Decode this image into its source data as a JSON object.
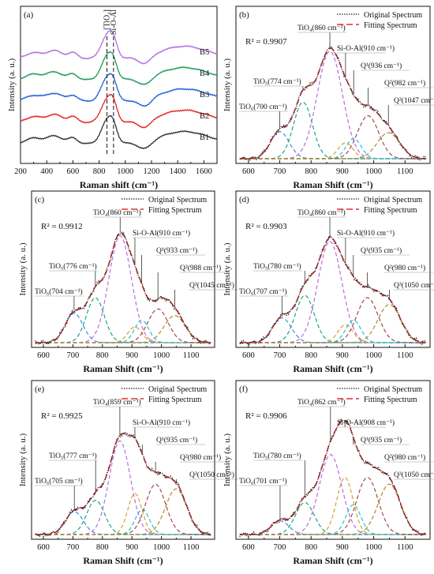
{
  "chart_data": [
    {
      "panel": "(a)",
      "type": "line",
      "xlabel": "Raman shift (cm⁻¹)",
      "ylabel": "Intensity (a. u.)",
      "xlim": [
        200,
        1700
      ],
      "xticks": [
        200,
        400,
        600,
        800,
        1000,
        1200,
        1400,
        1600
      ],
      "markers": [
        {
          "x": 860,
          "label": "[TiO₄]"
        },
        {
          "x": 910,
          "label": "Si-O-Al"
        }
      ],
      "series": [
        {
          "name": "B5",
          "color": "#b26ee0",
          "offset": 4
        },
        {
          "name": "B4",
          "color": "#1e9a5a",
          "offset": 3
        },
        {
          "name": "B3",
          "color": "#1f5fd6",
          "offset": 2
        },
        {
          "name": "B2",
          "color": "#e02424",
          "offset": 1
        },
        {
          "name": "B1",
          "color": "#333333",
          "offset": 0
        }
      ]
    },
    {
      "panel": "(b)",
      "type": "line",
      "xlabel": "Raman Shift (cm⁻¹)",
      "ylabel": "Intensity (a. u.)",
      "xlim": [
        560,
        1180
      ],
      "xticks": [
        600,
        700,
        800,
        900,
        1000,
        1100
      ],
      "r2": "R² = 0.9907",
      "legend": [
        "Original Spectrum",
        "Fitting Spectrum"
      ],
      "peaks": [
        {
          "center": 700,
          "height": 0.24,
          "width": 30,
          "label": "TiO₆(700 cm⁻¹)",
          "color": "#3c8fd6"
        },
        {
          "center": 774,
          "height": 0.5,
          "width": 30,
          "label": "TiO₅(774 cm⁻¹)",
          "color": "#18a58b"
        },
        {
          "center": 860,
          "height": 0.95,
          "width": 40,
          "label": "TiO₄(860 cm⁻¹)",
          "color": "#b86de0"
        },
        {
          "center": 910,
          "height": 0.14,
          "width": 24,
          "label": "Si-O-Al(910 cm⁻¹)",
          "color": "#d9a12a"
        },
        {
          "center": 936,
          "height": 0.18,
          "width": 24,
          "label": "Q¹(936 cm⁻¹)",
          "color": "#20c2d9"
        },
        {
          "center": 982,
          "height": 0.38,
          "width": 34,
          "label": "Q²(982 cm⁻¹)",
          "color": "#a34a4a"
        },
        {
          "center": 1047,
          "height": 0.23,
          "width": 36,
          "label": "Q³(1047 cm⁻¹)",
          "color": "#b08a2a"
        }
      ]
    },
    {
      "panel": "(c)",
      "type": "line",
      "xlabel": "Raman Shift (cm⁻¹)",
      "ylabel": "Intensity (a. u.)",
      "xlim": [
        560,
        1180
      ],
      "xticks": [
        600,
        700,
        800,
        900,
        1000,
        1100
      ],
      "r2": "R² = 0.9912",
      "legend": [
        "Original Spectrum",
        "Fitting Spectrum"
      ],
      "peaks": [
        {
          "center": 704,
          "height": 0.26,
          "width": 30,
          "label": "TiO₆(704 cm⁻¹)",
          "color": "#3c8fd6"
        },
        {
          "center": 776,
          "height": 0.4,
          "width": 30,
          "label": "TiO₅(776 cm⁻¹)",
          "color": "#18a58b"
        },
        {
          "center": 860,
          "height": 0.95,
          "width": 38,
          "label": "TiO₄(860 cm⁻¹)",
          "color": "#b86de0"
        },
        {
          "center": 910,
          "height": 0.14,
          "width": 24,
          "label": "Si-O-Al(910 cm⁻¹)",
          "color": "#d9a12a"
        },
        {
          "center": 933,
          "height": 0.2,
          "width": 24,
          "label": "Q¹(933 cm⁻¹)",
          "color": "#20c2d9"
        },
        {
          "center": 988,
          "height": 0.3,
          "width": 34,
          "label": "Q²(988 cm⁻¹)",
          "color": "#a34a4a"
        },
        {
          "center": 1045,
          "height": 0.24,
          "width": 36,
          "label": "Q³(1045 cm⁻¹)",
          "color": "#b08a2a"
        }
      ]
    },
    {
      "panel": "(d)",
      "type": "line",
      "xlabel": "Raman Shift (cm⁻¹)",
      "ylabel": "Intensity (a. u.)",
      "xlim": [
        560,
        1180
      ],
      "xticks": [
        600,
        700,
        800,
        900,
        1000,
        1100
      ],
      "r2": "R² = 0.9903",
      "legend": [
        "Original Spectrum",
        "Fitting Spectrum"
      ],
      "peaks": [
        {
          "center": 707,
          "height": 0.22,
          "width": 30,
          "label": "TiO₆(707 cm⁻¹)",
          "color": "#3c8fd6"
        },
        {
          "center": 780,
          "height": 0.42,
          "width": 30,
          "label": "TiO₅(780 cm⁻¹)",
          "color": "#18a58b"
        },
        {
          "center": 860,
          "height": 0.9,
          "width": 38,
          "label": "TiO₄(860 cm⁻¹)",
          "color": "#b86de0"
        },
        {
          "center": 910,
          "height": 0.16,
          "width": 24,
          "label": "Si-O-Al(910 cm⁻¹)",
          "color": "#d9a12a"
        },
        {
          "center": 935,
          "height": 0.2,
          "width": 24,
          "label": "Q¹(935 cm⁻¹)",
          "color": "#20c2d9"
        },
        {
          "center": 980,
          "height": 0.4,
          "width": 34,
          "label": "Q²(980 cm⁻¹)",
          "color": "#a34a4a"
        },
        {
          "center": 1050,
          "height": 0.34,
          "width": 36,
          "label": "Q³(1050 cm⁻¹)",
          "color": "#b08a2a"
        }
      ]
    },
    {
      "panel": "(e)",
      "type": "line",
      "xlabel": "Raman Shift (cm⁻¹)",
      "ylabel": "Intensity (a. u.)",
      "xlim": [
        560,
        1180
      ],
      "xticks": [
        600,
        700,
        800,
        900,
        1000,
        1100
      ],
      "r2": "R² = 0.9925",
      "legend": [
        "Original Spectrum",
        "Fitting Spectrum"
      ],
      "peaks": [
        {
          "center": 705,
          "height": 0.2,
          "width": 30,
          "label": "TiO₆(705 cm⁻¹)",
          "color": "#3c8fd6"
        },
        {
          "center": 777,
          "height": 0.3,
          "width": 30,
          "label": "TiO₅(777 cm⁻¹)",
          "color": "#18a58b"
        },
        {
          "center": 859,
          "height": 0.82,
          "width": 36,
          "label": "TiO₄(859 cm⁻¹)",
          "color": "#b86de0"
        },
        {
          "center": 910,
          "height": 0.36,
          "width": 24,
          "label": "Si-O-Al(910 cm⁻¹)",
          "color": "#d9a12a"
        },
        {
          "center": 935,
          "height": 0.22,
          "width": 24,
          "label": "Q¹(935 cm⁻¹)",
          "color": "#20c2d9"
        },
        {
          "center": 980,
          "height": 0.44,
          "width": 34,
          "label": "Q²(980 cm⁻¹)",
          "color": "#a34a4a"
        },
        {
          "center": 1050,
          "height": 0.4,
          "width": 36,
          "label": "Q³(1050 cm⁻¹)",
          "color": "#b08a2a"
        }
      ]
    },
    {
      "panel": "(f)",
      "type": "line",
      "xlabel": "Raman Shift (cm⁻¹)",
      "ylabel": "Intensity (a. u.)",
      "xlim": [
        560,
        1180
      ],
      "xticks": [
        600,
        700,
        800,
        900,
        1000,
        1100
      ],
      "r2": "R² = 0.9906",
      "legend": [
        "Original Spectrum",
        "Fitting Spectrum"
      ],
      "peaks": [
        {
          "center": 701,
          "height": 0.12,
          "width": 28,
          "label": "TiO₆(701 cm⁻¹)",
          "color": "#3c8fd6"
        },
        {
          "center": 780,
          "height": 0.28,
          "width": 30,
          "label": "TiO₅(780 cm⁻¹)",
          "color": "#18a58b"
        },
        {
          "center": 862,
          "height": 0.7,
          "width": 36,
          "label": "TiO₄(862 cm⁻¹)",
          "color": "#b86de0"
        },
        {
          "center": 908,
          "height": 0.5,
          "width": 26,
          "label": "Si-O-Al(908 cm⁻¹)",
          "color": "#d9a12a"
        },
        {
          "center": 935,
          "height": 0.26,
          "width": 24,
          "label": "Q¹(935 cm⁻¹)",
          "color": "#20c2d9"
        },
        {
          "center": 980,
          "height": 0.5,
          "width": 34,
          "label": "Q²(980 cm⁻¹)",
          "color": "#a34a4a"
        },
        {
          "center": 1050,
          "height": 0.44,
          "width": 36,
          "label": "Q³(1050 cm⁻¹)",
          "color": "#b08a2a"
        }
      ]
    }
  ]
}
